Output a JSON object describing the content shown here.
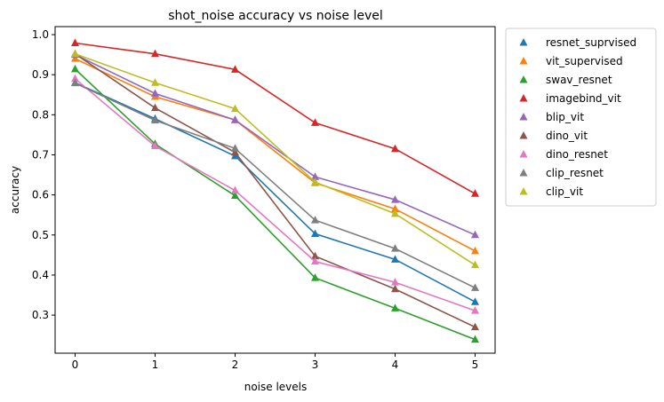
{
  "chart_data": {
    "type": "line",
    "title": "shot_noise accuracy vs noise level",
    "xlabel": "noise levels",
    "ylabel": "accuracy",
    "x": [
      0,
      1,
      2,
      3,
      4,
      5
    ],
    "xlim": [
      -0.25,
      5.25
    ],
    "ylim": [
      0.205,
      1.02
    ],
    "yticks": [
      0.3,
      0.4,
      0.5,
      0.6,
      0.7,
      0.8,
      0.9,
      1.0
    ],
    "ytick_labels": [
      "0.3",
      "0.4",
      "0.5",
      "0.6",
      "0.7",
      "0.8",
      "0.9",
      "1.0"
    ],
    "xtick_labels": [
      "0",
      "1",
      "2",
      "3",
      "4",
      "5"
    ],
    "legend_position": "outside-right",
    "marker": "triangle-up",
    "series": [
      {
        "name": "resnet_suprvised",
        "color": "#1f77b4",
        "values": [
          0.88,
          0.79,
          0.697,
          0.503,
          0.439,
          0.333
        ]
      },
      {
        "name": "vit_supervised",
        "color": "#ff7f0e",
        "values": [
          0.94,
          0.845,
          0.787,
          0.63,
          0.565,
          0.46
        ]
      },
      {
        "name": "swav_resnet",
        "color": "#2ca02c",
        "values": [
          0.914,
          0.727,
          0.598,
          0.393,
          0.317,
          0.239
        ]
      },
      {
        "name": "imagebind_vit",
        "color": "#d62728",
        "values": [
          0.979,
          0.952,
          0.913,
          0.78,
          0.715,
          0.603
        ]
      },
      {
        "name": "blip_vit",
        "color": "#9467bd",
        "values": [
          0.95,
          0.853,
          0.787,
          0.645,
          0.588,
          0.5
        ]
      },
      {
        "name": "dino_vit",
        "color": "#8c564b",
        "values": [
          0.952,
          0.817,
          0.706,
          0.447,
          0.365,
          0.27
        ]
      },
      {
        "name": "dino_resnet",
        "color": "#e377c2",
        "values": [
          0.89,
          0.722,
          0.611,
          0.434,
          0.382,
          0.311
        ]
      },
      {
        "name": "clip_resnet",
        "color": "#7f7f7f",
        "values": [
          0.879,
          0.786,
          0.716,
          0.537,
          0.466,
          0.368
        ]
      },
      {
        "name": "clip_vit",
        "color": "#bcbd22",
        "values": [
          0.952,
          0.88,
          0.815,
          0.632,
          0.553,
          0.425
        ]
      }
    ]
  }
}
